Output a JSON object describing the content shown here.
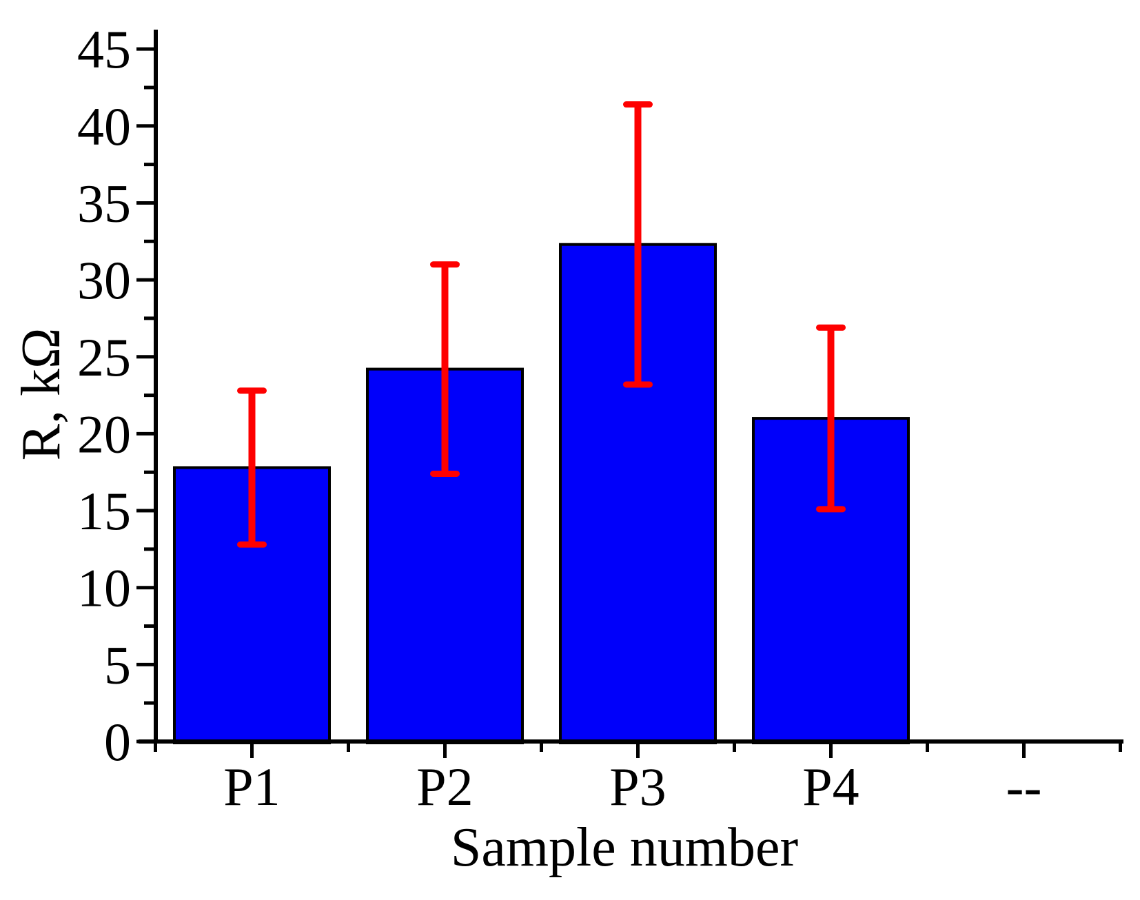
{
  "page": {
    "background": "#FFFFFF"
  },
  "chart_data": {
    "type": "bar",
    "title": "",
    "xlabel": "Sample number",
    "ylabel": "R, kΩ",
    "categories": [
      "P1",
      "P2",
      "P3",
      "P4",
      "--"
    ],
    "series": [
      {
        "name": "R",
        "values": [
          17.8,
          24.2,
          32.3,
          21.0,
          null
        ],
        "errors": [
          5.0,
          6.8,
          9.1,
          5.9,
          null
        ]
      }
    ],
    "ylim": [
      0,
      46.3
    ],
    "y_major_ticks": [
      0,
      5,
      10,
      15,
      20,
      25,
      30,
      35,
      40,
      45
    ],
    "y_minor_ticks": [
      2.5,
      7.5,
      12.5,
      17.5,
      22.5,
      27.5,
      32.5,
      37.5,
      42.5
    ],
    "grid": false,
    "legend": "none",
    "colors": {
      "bar_fill": "#0000FA",
      "bar_outline": "#000000",
      "error_bar": "#FE0000",
      "axis": "#000000",
      "text": "#000000"
    }
  }
}
